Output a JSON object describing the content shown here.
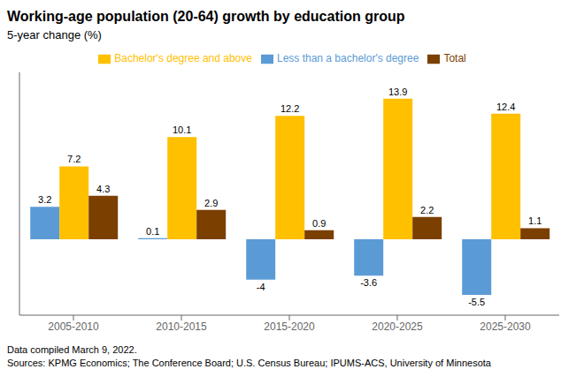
{
  "chart_data": {
    "type": "bar",
    "title": "Working-age population (20-64) growth by education group",
    "subtitle": "5-year change (%)",
    "categories": [
      "2005-2010",
      "2010-2015",
      "2015-2020",
      "2020-2025",
      "2025-2030"
    ],
    "series": [
      {
        "name": "Less than a bachelor's degree",
        "color": "#5B9BD5",
        "values": [
          3.2,
          0.1,
          -4.0,
          -3.6,
          -5.5
        ]
      },
      {
        "name": "Bachelor's degree and above",
        "color": "#FFC000",
        "values": [
          7.2,
          10.1,
          12.2,
          13.9,
          12.4
        ]
      },
      {
        "name": "Total",
        "color": "#7B3F00",
        "values": [
          4.3,
          2.9,
          0.9,
          2.2,
          1.1
        ]
      }
    ],
    "ylim": [
      -7.5,
      16.5
    ],
    "data_labels": true,
    "tick_labels": "x",
    "legend": "top",
    "footnotes": [
      "Data compiled March 9, 2022.",
      "Sources: KPMG Economics; The Conference Board; U.S. Census Bureau; IPUMS-ACS, University of Minnesota"
    ]
  }
}
